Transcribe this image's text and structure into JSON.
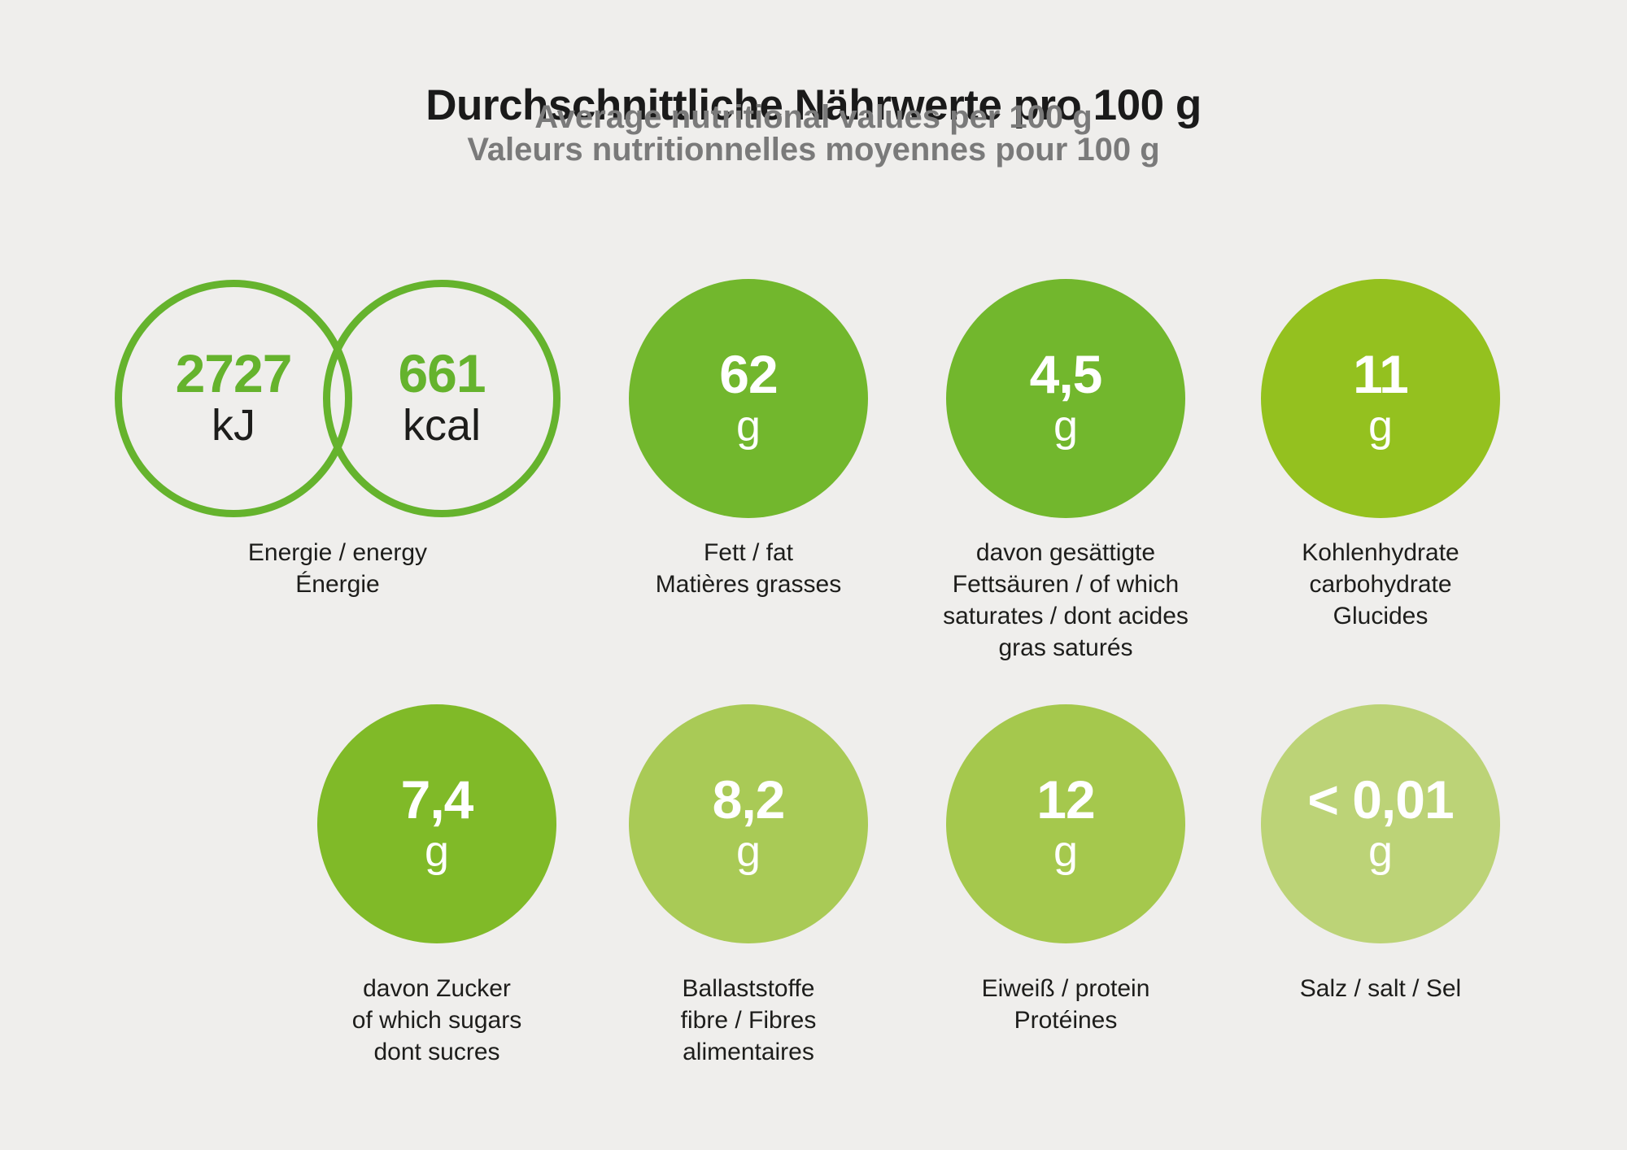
{
  "header": {
    "title": "Durchschnittliche Nährwerte pro 100 g",
    "subtitle_en": "Average nutritional values per 100 g",
    "subtitle_fr": "Valeurs nutritionnelles moyennes pour 100 g"
  },
  "energy": {
    "kj_value": "2727",
    "kj_unit": "kJ",
    "kcal_value": "661",
    "kcal_unit": "kcal",
    "label_lines": [
      "Energie / energy",
      "Énergie"
    ]
  },
  "nutrients": [
    {
      "id": "fat",
      "value": "62",
      "unit": "g",
      "label_lines": [
        "Fett / fat",
        "Matières grasses"
      ]
    },
    {
      "id": "saturates",
      "value": "4,5",
      "unit": "g",
      "label_lines": [
        "davon gesättigte",
        "Fettsäuren / of which",
        "saturates / dont acides",
        "gras saturés"
      ]
    },
    {
      "id": "carbohydrate",
      "value": "11",
      "unit": "g",
      "label_lines": [
        "Kohlenhydrate",
        "carbohydrate",
        "Glucides"
      ]
    },
    {
      "id": "sugars",
      "value": "7,4",
      "unit": "g",
      "label_lines": [
        "davon Zucker",
        "of which sugars",
        "dont sucres"
      ]
    },
    {
      "id": "fibre",
      "value": "8,2",
      "unit": "g",
      "label_lines": [
        "Ballaststoffe",
        "fibre / Fibres",
        "alimentaires"
      ]
    },
    {
      "id": "protein",
      "value": "12",
      "unit": "g",
      "label_lines": [
        "Eiweiß / protein",
        "Protéines"
      ]
    },
    {
      "id": "salt",
      "value": "< 0,01",
      "unit": "g",
      "label_lines": [
        "Salz / salt / Sel"
      ]
    }
  ],
  "colors": {
    "background": "#efeeec",
    "title_text": "#1a1a1a",
    "subtitle_text": "#7a7a7a",
    "energy_ring": "#65b32d",
    "energy_value": "#65b32d",
    "energy_unit_text": "#1d1d1b",
    "label_text": "#1d1d1b",
    "circle_text": "#ffffff",
    "fat": "#72b72d",
    "saturates": "#72b72d",
    "carbohydrate": "#94c11f",
    "sugars": "#80ba28",
    "fibre": "#a9ca56",
    "protein": "#a5c84d",
    "salt": "#bcd377"
  },
  "chart_data": {
    "type": "table",
    "title": "Durchschnittliche Nährwerte pro 100 g",
    "subtitle": [
      "Average nutritional values per 100 g",
      "Valeurs nutritionnelles moyennes pour 100 g"
    ],
    "per": "100 g",
    "categories": [
      "Energie / energy / Énergie (kJ)",
      "Energie / energy / Énergie (kcal)",
      "Fett / fat / Matières grasses",
      "davon gesättigte Fettsäuren / of which saturates / dont acides gras saturés",
      "Kohlenhydrate / carbohydrate / Glucides",
      "davon Zucker / of which sugars / dont sucres",
      "Ballaststoffe / fibre / Fibres alimentaires",
      "Eiweiß / protein / Protéines",
      "Salz / salt / Sel"
    ],
    "values": [
      2727,
      661,
      62,
      4.5,
      11,
      7.4,
      8.2,
      12,
      "<0.01"
    ],
    "units": [
      "kJ",
      "kcal",
      "g",
      "g",
      "g",
      "g",
      "g",
      "g",
      "g"
    ]
  }
}
